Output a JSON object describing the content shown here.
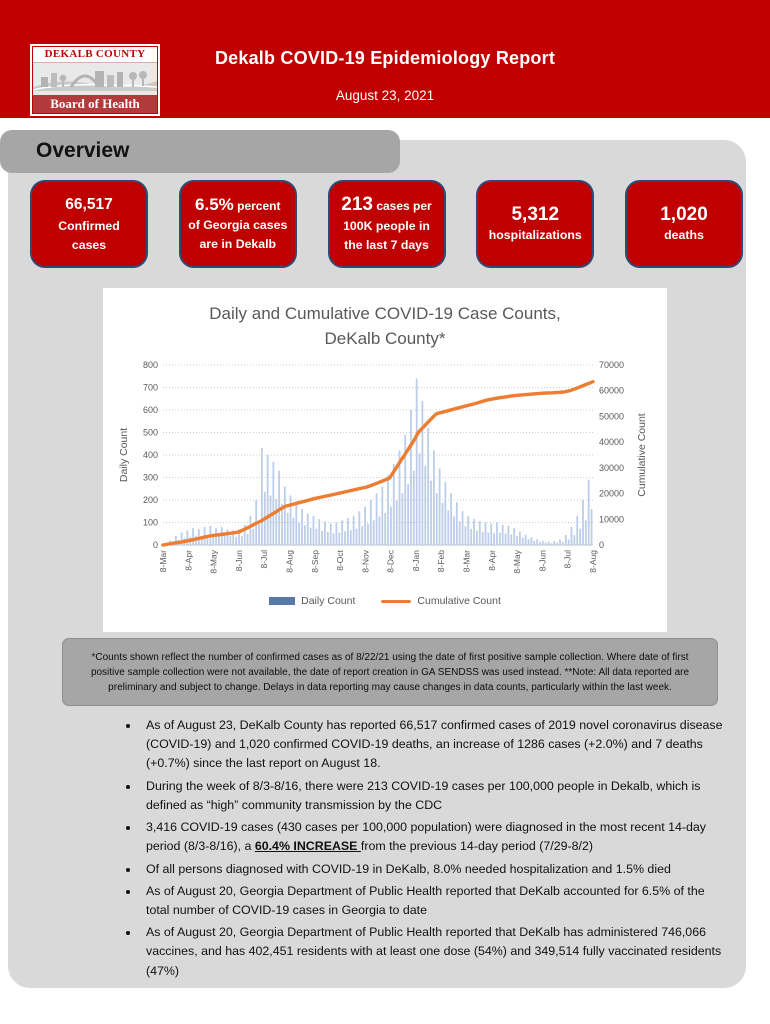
{
  "banner": {
    "title": "Dekalb COVID-19 Epidemiology Report",
    "date": "August 23, 2021",
    "logo": {
      "top": "DEKALB COUNTY",
      "bottom": "Board of Health"
    }
  },
  "overview": {
    "heading": "Overview",
    "cards": [
      {
        "value": "66,517",
        "inline": "",
        "lines": [
          "Confirmed",
          "cases"
        ]
      },
      {
        "value": "6.5%",
        "inline": "percent",
        "lines": [
          "of Georgia cases",
          "are in Dekalb"
        ]
      },
      {
        "value": "213",
        "inline": "cases per",
        "lines": [
          "100K people in",
          "the last 7 days"
        ]
      },
      {
        "value": "5,312",
        "inline": "",
        "lines": [
          "hospitalizations"
        ]
      },
      {
        "value": "1,020",
        "inline": "",
        "lines": [
          "deaths"
        ]
      }
    ]
  },
  "chart_data": {
    "type": "bar",
    "title": "Daily and Cumulative COVID-19 Case Counts, DeKalb County*",
    "title_line1": "Daily and Cumulative COVID-19 Case Counts,",
    "title_line2": "DeKalb County*",
    "x_tick_labels": [
      "8-Mar",
      "8-Apr",
      "8-May",
      "8-Jun",
      "8-Jul",
      "8-Aug",
      "8-Sep",
      "8-Oct",
      "8-Nov",
      "8-Dec",
      "8-Jan",
      "8-Feb",
      "8-Mar",
      "8-Apr",
      "8-May",
      "8-Jun",
      "8-Jul",
      "8-Aug"
    ],
    "left_axis": {
      "label": "Daily Count",
      "min": 0,
      "max": 800,
      "step": 100
    },
    "right_axis": {
      "label": "Cumulative Count",
      "min": 0,
      "max": 70000,
      "step": 10000
    },
    "legend": [
      {
        "label": "Daily Count",
        "type": "bar",
        "color": "#5878A8"
      },
      {
        "label": "Cumulative Count",
        "type": "line",
        "color": "#ED7D31"
      }
    ],
    "bar_color": "#BCCDEA",
    "line_color": "#ED7D31",
    "series": [
      {
        "name": "Daily Count",
        "axis": "left",
        "values": [
          5,
          3,
          20,
          11,
          40,
          22,
          55,
          30,
          65,
          36,
          75,
          41,
          70,
          39,
          80,
          44,
          85,
          47,
          75,
          41,
          80,
          44,
          70,
          39,
          65,
          36,
          70,
          39,
          90,
          50,
          130,
          72,
          200,
          110,
          430,
          237,
          400,
          220,
          370,
          204,
          330,
          182,
          260,
          143,
          220,
          121,
          180,
          99,
          160,
          88,
          140,
          77,
          130,
          72,
          115,
          63,
          105,
          58,
          95,
          52,
          100,
          55,
          110,
          61,
          120,
          66,
          130,
          72,
          150,
          83,
          170,
          94,
          200,
          110,
          230,
          127,
          260,
          143,
          310,
          171,
          360,
          198,
          420,
          231,
          490,
          270,
          600,
          330,
          740,
          407,
          640,
          352,
          520,
          286,
          420,
          231,
          340,
          187,
          280,
          154,
          230,
          127,
          190,
          105,
          150,
          83,
          130,
          72,
          115,
          63,
          105,
          58,
          100,
          55,
          95,
          52,
          100,
          55,
          90,
          50,
          85,
          47,
          75,
          41,
          60,
          33,
          45,
          25,
          35,
          19,
          25,
          14,
          18,
          10,
          15,
          8,
          18,
          10,
          25,
          14,
          45,
          25,
          80,
          44,
          130,
          72,
          200,
          110,
          290,
          160
        ]
      },
      {
        "name": "Cumulative Count",
        "axis": "right",
        "values": [
          0,
          400,
          800,
          1100,
          1500,
          2000,
          2500,
          3000,
          3500,
          3800,
          4100,
          4400,
          4700,
          5000,
          6100,
          7200,
          8400,
          9500,
          10900,
          12300,
          13700,
          15000,
          15600,
          16200,
          16800,
          17400,
          18000,
          18500,
          19000,
          19500,
          20000,
          20500,
          21000,
          21500,
          22000,
          22500,
          23300,
          24200,
          25100,
          26000,
          29500,
          33000,
          36500,
          40000,
          44000,
          46300,
          48700,
          51000,
          51600,
          52200,
          52800,
          53400,
          54000,
          54600,
          55200,
          55900,
          56500,
          56900,
          57300,
          57600,
          58000,
          58200,
          58400,
          58600,
          58800,
          59000,
          59100,
          59200,
          59350,
          59500,
          60000,
          60800,
          61700,
          62600,
          63500
        ]
      }
    ]
  },
  "footnote": "*Counts shown reflect the number of confirmed cases as of 8/22/21 using the date of first positive sample collection. Where date of first positive sample collection were not available, the date of report creation in GA SENDSS was used instead. **Note: All data reported are preliminary and subject to change. Delays in data reporting may cause changes in data counts, particularly within the last week.",
  "bullets": [
    {
      "segments": [
        {
          "t": "As of August 23, DeKalb County has reported 66,517 confirmed cases of 2019 novel coronavirus disease (COVID-19) and 1,020 confirmed COVID-19 deaths, an increase of 1286 cases (+2.0%) and 7 deaths (+0.7%) since the last report on August 18."
        }
      ]
    },
    {
      "segments": [
        {
          "t": "During the week of 8/3-8/16, there were 213 COVID-19 cases per 100,000 people in Dekalb, which is defined as “high” community transmission by the CDC"
        }
      ]
    },
    {
      "segments": [
        {
          "t": "3,416 COVID-19 cases (430 cases per 100,000 population) were diagnosed in the most recent 14-day period (8/3-8/16), a "
        },
        {
          "t": "60.4% INCREASE ",
          "b": true
        },
        {
          "t": "from the previous 14-day period (7/29-8/2)"
        }
      ]
    },
    {
      "segments": [
        {
          "t": "Of all persons diagnosed with COVID-19 in DeKalb, 8.0% needed hospitalization and 1.5% died"
        }
      ]
    },
    {
      "segments": [
        {
          "t": "As of August 20, Georgia Department of Public Health reported that DeKalb accounted for 6.5% of the total number of COVID-19 cases in Georgia to date"
        }
      ]
    },
    {
      "segments": [
        {
          "t": "As of August 20, Georgia Department of Public Health reported that DeKalb has administered 746,066 vaccines, and has 402,451 residents with at least one dose (54%) and 349,514 fully vaccinated residents (47%)"
        }
      ]
    }
  ]
}
